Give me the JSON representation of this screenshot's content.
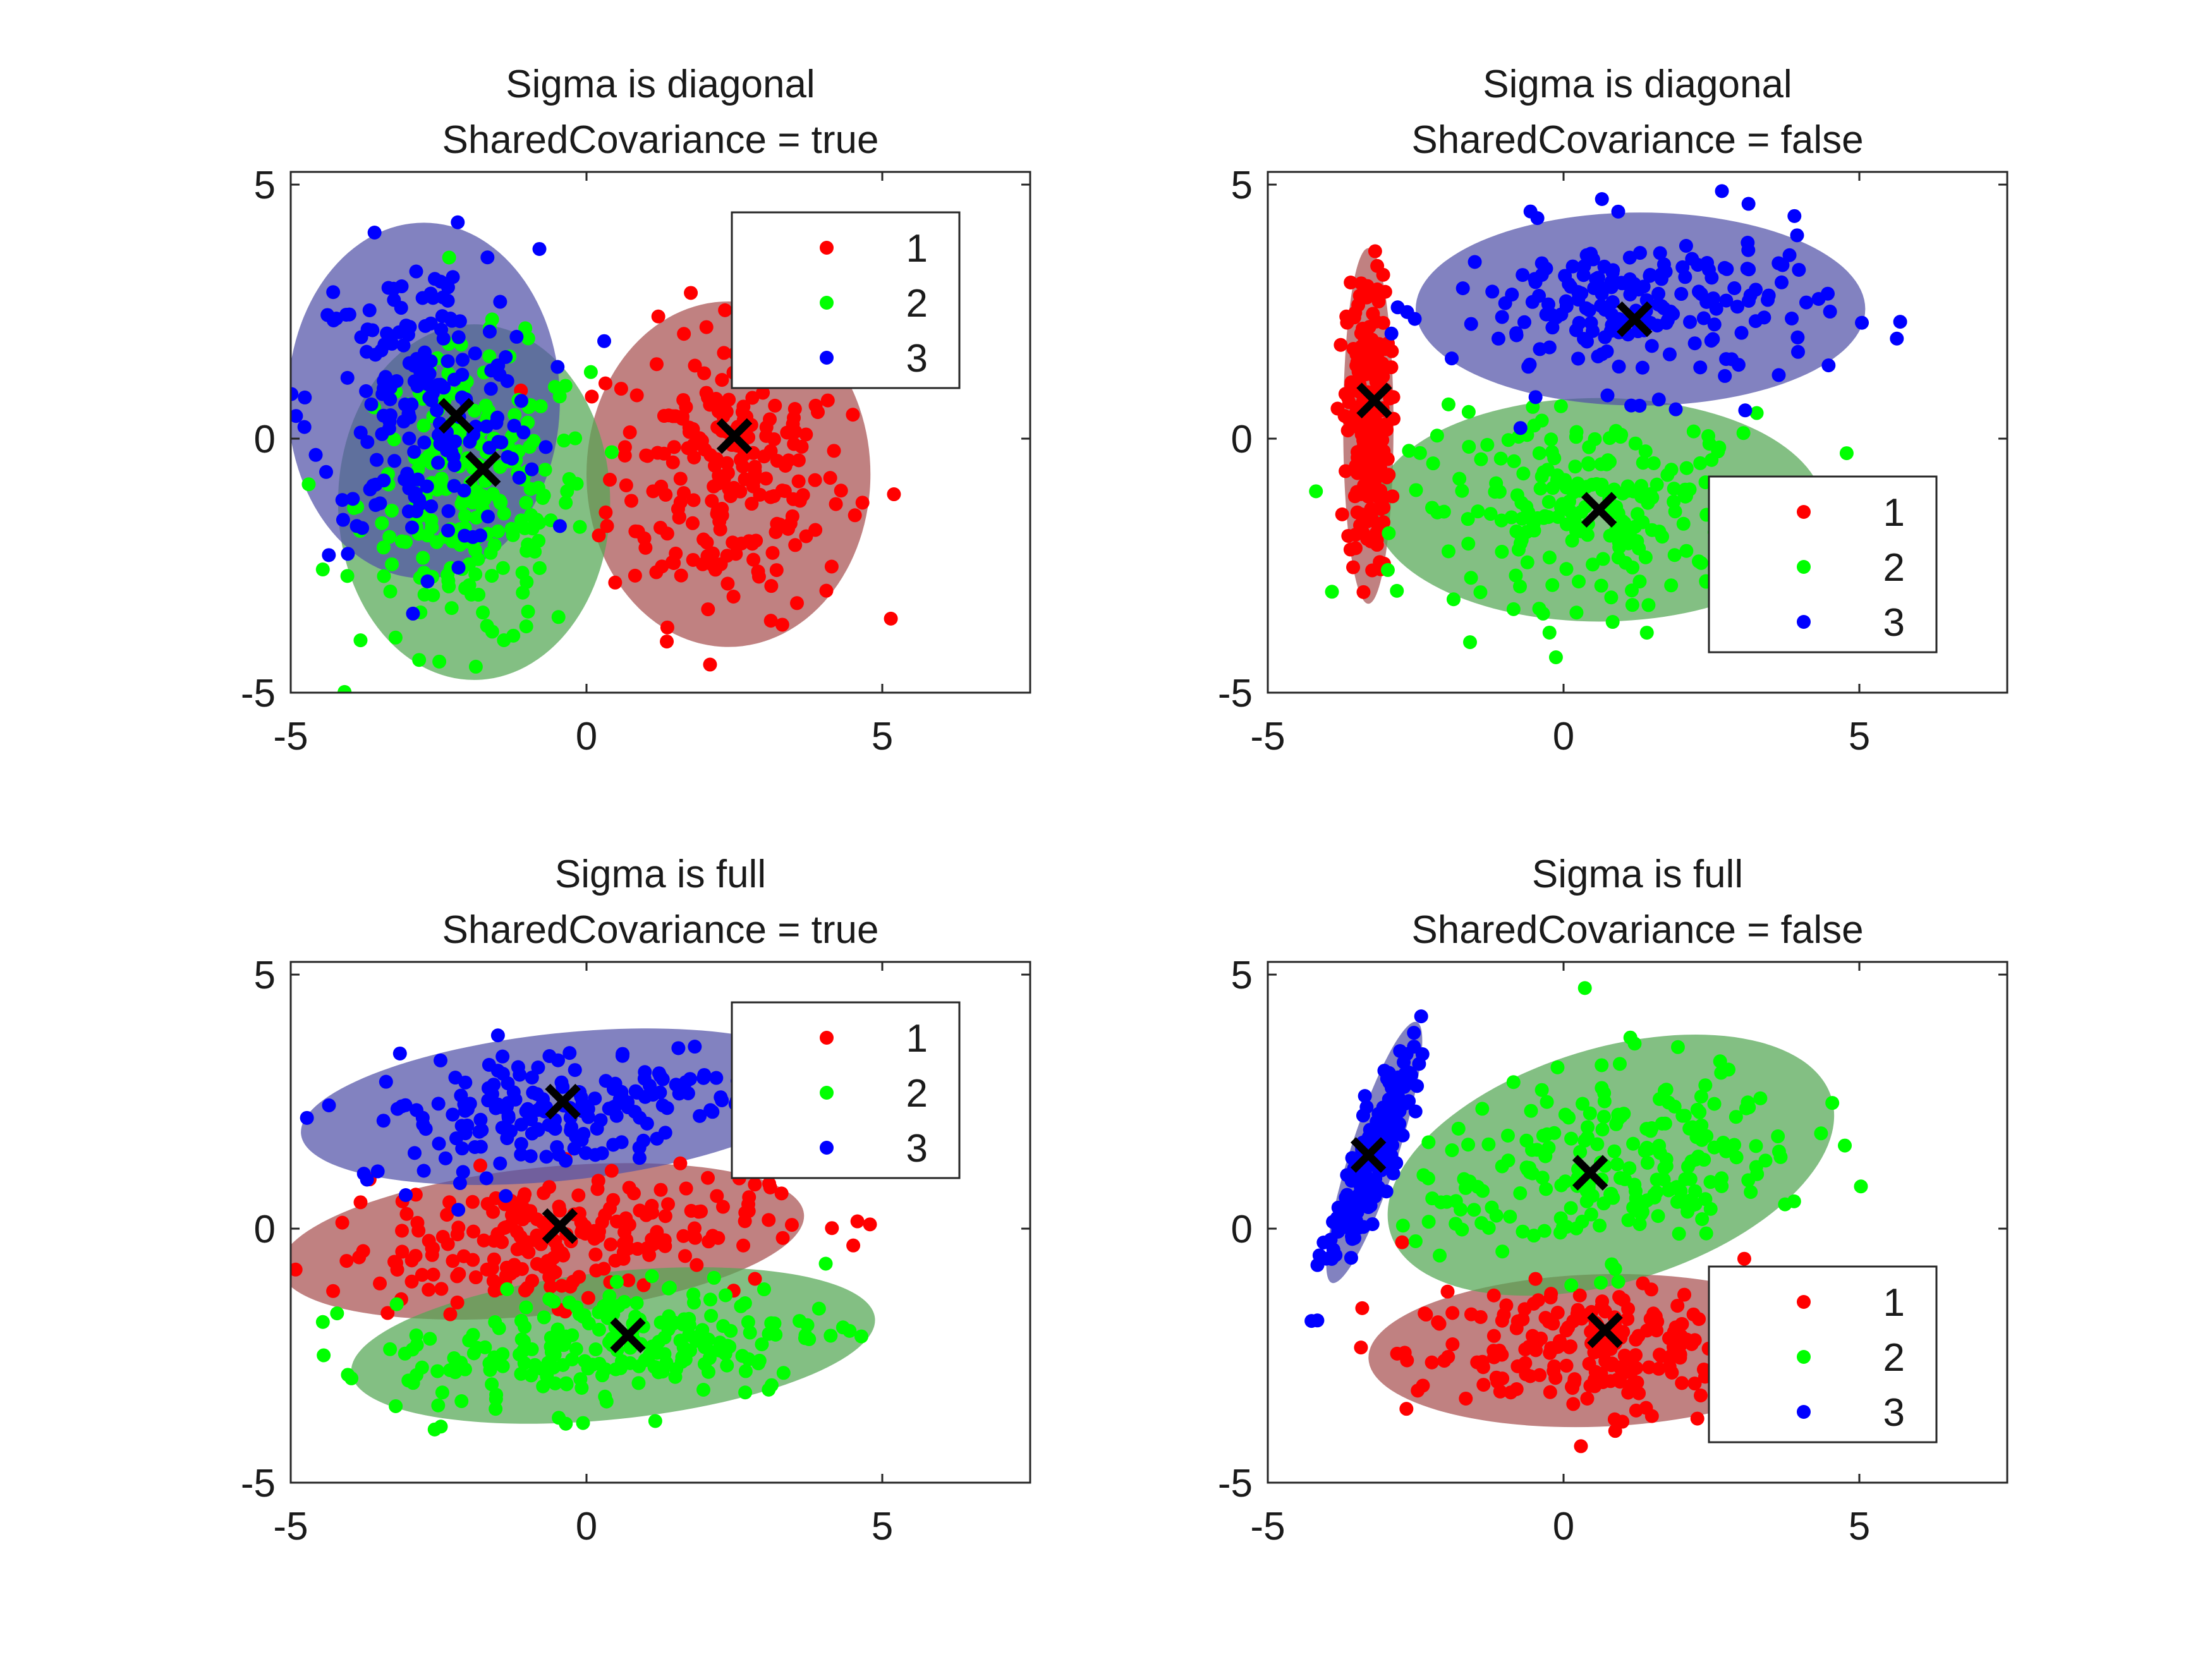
{
  "figure": {
    "background": "#ffffff"
  },
  "colors": {
    "cluster_1": "#ff0000",
    "cluster_2": "#00ff00",
    "cluster_3": "#0000ff",
    "ellipse_1": "#a85151",
    "ellipse_2": "#53a653",
    "ellipse_3": "#5252a8",
    "centroid": "#000000"
  },
  "chart_data": [
    {
      "type": "scatter",
      "title_line1": "Sigma is diagonal",
      "title_line2": "SharedCovariance = true",
      "xlim": [
        -5,
        7.5
      ],
      "ylim": [
        -5,
        5.25
      ],
      "xticks": [
        "-5",
        "0",
        "5"
      ],
      "yticks": [
        "-5",
        "0",
        "5"
      ],
      "legend": {
        "position": "top-right",
        "entries": [
          "1",
          "2",
          "3"
        ]
      },
      "components": [
        {
          "name": "1",
          "centroid": [
            2.5,
            0.05
          ],
          "ellipse": {
            "cx": 2.4,
            "cy": -0.7,
            "rx": 4.8,
            "ry": 6.8,
            "angle": 0
          }
        },
        {
          "name": "2",
          "centroid": [
            -1.75,
            -0.6
          ],
          "ellipse": {
            "cx": -1.9,
            "cy": -1.25,
            "rx": 4.6,
            "ry": 7.0,
            "angle": 0
          }
        },
        {
          "name": "3",
          "centroid": [
            -2.2,
            0.45
          ],
          "ellipse": {
            "cx": -2.75,
            "cy": 0.75,
            "rx": 4.6,
            "ry": 7.0,
            "angle": 0
          }
        }
      ]
    },
    {
      "type": "scatter",
      "title_line1": "Sigma is diagonal",
      "title_line2": "SharedCovariance = false",
      "xlim": [
        -5,
        7.5
      ],
      "ylim": [
        -5,
        5.25
      ],
      "xticks": [
        "-5",
        "0",
        "5"
      ],
      "yticks": [
        "-5",
        "0",
        "5"
      ],
      "legend": {
        "position": "bottom-right",
        "entries": [
          "1",
          "2",
          "3"
        ]
      },
      "components": [
        {
          "name": "1",
          "centroid": [
            -3.2,
            0.75
          ],
          "ellipse": {
            "cx": -3.3,
            "cy": 0.25,
            "rx": 0.85,
            "ry": 7.0,
            "angle": 0
          }
        },
        {
          "name": "2",
          "centroid": [
            0.6,
            -1.4
          ],
          "ellipse": {
            "cx": 0.6,
            "cy": -1.4,
            "rx": 7.6,
            "ry": 4.4,
            "angle": 0
          }
        },
        {
          "name": "3",
          "centroid": [
            1.2,
            2.35
          ],
          "ellipse": {
            "cx": 1.3,
            "cy": 2.55,
            "rx": 7.6,
            "ry": 3.8,
            "angle": 0
          }
        }
      ]
    },
    {
      "type": "scatter",
      "title_line1": "Sigma is full",
      "title_line2": "SharedCovariance = true",
      "xlim": [
        -5,
        7.5
      ],
      "ylim": [
        -5,
        5.25
      ],
      "xticks": [
        "-5",
        "0",
        "5"
      ],
      "yticks": [
        "-5",
        "0",
        "5"
      ],
      "legend": {
        "position": "top-right",
        "entries": [
          "1",
          "2",
          "3"
        ]
      },
      "components": [
        {
          "name": "1",
          "centroid": [
            -0.45,
            0.05
          ],
          "ellipse": {
            "cx": -0.75,
            "cy": -0.25,
            "rx": 8.9,
            "ry": 2.9,
            "angle": 6
          }
        },
        {
          "name": "2",
          "centroid": [
            0.7,
            -2.1
          ],
          "ellipse": {
            "cx": 0.45,
            "cy": -2.3,
            "rx": 8.9,
            "ry": 2.9,
            "angle": 6
          }
        },
        {
          "name": "3",
          "centroid": [
            -0.4,
            2.5
          ],
          "ellipse": {
            "cx": -0.4,
            "cy": 2.4,
            "rx": 8.9,
            "ry": 2.9,
            "angle": 6
          }
        }
      ]
    },
    {
      "type": "scatter",
      "title_line1": "Sigma is full",
      "title_line2": "SharedCovariance = false",
      "xlim": [
        -5,
        7.5
      ],
      "ylim": [
        -5,
        5.25
      ],
      "xticks": [
        "-5",
        "0",
        "5"
      ],
      "yticks": [
        "-5",
        "0",
        "5"
      ],
      "legend": {
        "position": "bottom-right",
        "entries": [
          "1",
          "2",
          "3"
        ]
      },
      "components": [
        {
          "name": "1",
          "centroid": [
            0.7,
            -2.0
          ],
          "ellipse": {
            "cx": 0.55,
            "cy": -2.4,
            "rx": 7.7,
            "ry": 3.0,
            "angle": 2
          }
        },
        {
          "name": "2",
          "centroid": [
            0.45,
            1.1
          ],
          "ellipse": {
            "cx": 0.8,
            "cy": 1.25,
            "rx": 7.8,
            "ry": 4.6,
            "angle": 17
          }
        },
        {
          "name": "3",
          "centroid": [
            -3.3,
            1.45
          ],
          "ellipse": {
            "cx": -3.2,
            "cy": 1.5,
            "rx": 0.8,
            "ry": 5.4,
            "angle": -18
          }
        }
      ]
    }
  ]
}
